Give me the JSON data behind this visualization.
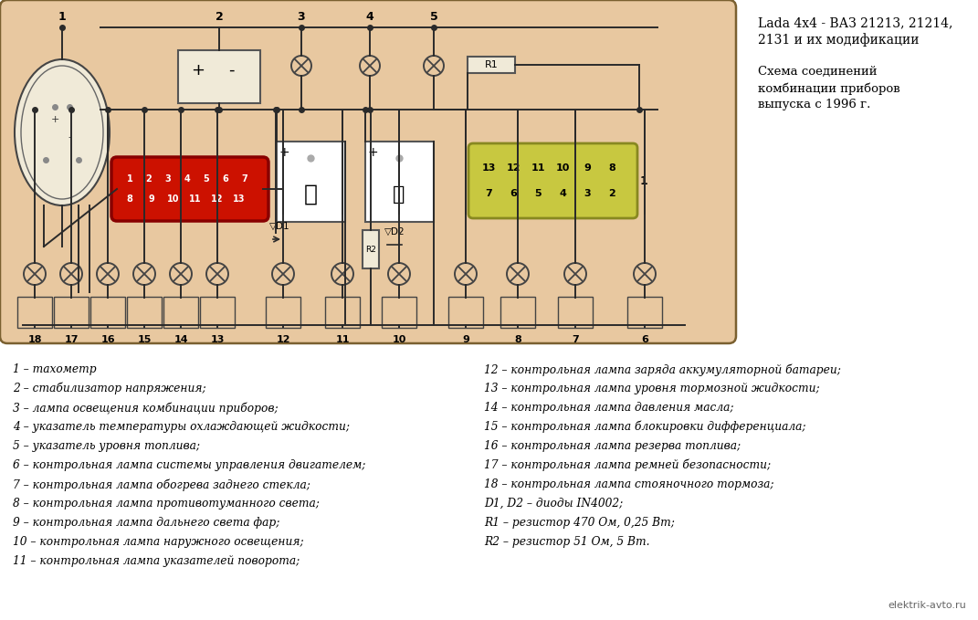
{
  "bg_color": "#ffffff",
  "page_bg": "#d8c8a8",
  "diagram_bg": "#e8c8a0",
  "diagram_border": "#8b7040",
  "title_line1": "Lada 4x4 - ВАЗ 21213, 21214,",
  "title_line2": "2131 и их модификации",
  "subtitle_line1": "Схема соединений",
  "subtitle_line2": "комбинации приборов",
  "subtitle_line3": "выпуска с 1996 г.",
  "watermark": "elektrik-avto.ru",
  "legend_left": [
    "1 – тахометр",
    "2 – стабилизатор напряжения;",
    "3 – лампа освещения комбинации приборов;",
    "4 – указатель температуры охлаждающей жидкости;",
    "5 – указатель уровня топлива;",
    "6 – контрольная лампа системы управления двигателем;",
    "7 – контрольная лампа обогрева заднего стекла;",
    "8 – контрольная лампа противотуманного света;",
    "9 – контрольная лампа дальнего света фар;",
    "10 – контрольная лампа наружного освещения;",
    "11 – контрольная лампа указателей поворота;"
  ],
  "legend_right": [
    "12 – контрольная лампа заряда аккумуляторной батареи;",
    "13 – контрольная лампа уровня тормозной жидкости;",
    "14 – контрольная лампа давления масла;",
    "15 – контрольная лампа блокировки дифференциала;",
    "16 – контрольная лампа резерва топлива;",
    "17 – контрольная лампа ремней безопасности;",
    "18 – контрольная лампа стояночного тормоза;",
    "D1, D2 – диоды IN4002;",
    "R1 – резистор 470 Ом, 0,25 Вт;",
    "R2 – резистор 51 Ом, 5 Вт."
  ],
  "wire_color": "#2a2a2a",
  "lamp_edge": "#444444",
  "lamp_face": "#e8c8a0",
  "connector_red_face": "#cc1100",
  "connector_red_edge": "#880000",
  "connector_yellow_face": "#c8c840",
  "connector_yellow_edge": "#888820"
}
